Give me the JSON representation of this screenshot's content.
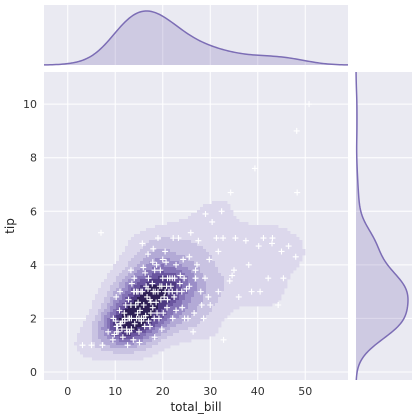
{
  "chart_data": {
    "type": "scatter",
    "subtype": "jointplot",
    "xlabel": "total_bill",
    "ylabel": "tip",
    "xlim": [
      -5,
      59
    ],
    "ylim": [
      -0.3,
      11.2
    ],
    "x_ticks": [
      "0",
      "10",
      "20",
      "30",
      "40",
      "50"
    ],
    "y_ticks": [
      "0",
      "2",
      "4",
      "6",
      "8",
      "10"
    ],
    "grid": true,
    "colors": {
      "accent": "#7c6db5",
      "panel_bg": "#eaeaf2",
      "grid": "#ffffff",
      "marker": "#ffffff",
      "kde_levels": [
        "#dcd8ec",
        "#c9c3e2",
        "#b3aad6",
        "#9b8ec8",
        "#8473b6",
        "#6a559f",
        "#4e3a82",
        "#2e1f55"
      ]
    },
    "points": [
      [
        3.1,
        1.0
      ],
      [
        5.0,
        1.0
      ],
      [
        7.3,
        1.0
      ],
      [
        10.3,
        1.7
      ],
      [
        10.3,
        1.5
      ],
      [
        10.6,
        1.5
      ],
      [
        10.3,
        1.7
      ],
      [
        11.0,
        1.8
      ],
      [
        11.2,
        1.8
      ],
      [
        11.4,
        1.6
      ],
      [
        12.0,
        2.0
      ],
      [
        12.4,
        1.6
      ],
      [
        12.5,
        1.5
      ],
      [
        12.6,
        1.0
      ],
      [
        12.7,
        2.0
      ],
      [
        13.0,
        2.0
      ],
      [
        13.3,
        2.5
      ],
      [
        13.4,
        1.6
      ],
      [
        13.4,
        2.0
      ],
      [
        13.9,
        3.0
      ],
      [
        14.0,
        3.0
      ],
      [
        14.3,
        2.5
      ],
      [
        14.5,
        2.0
      ],
      [
        14.7,
        2.2
      ],
      [
        14.8,
        3.0
      ],
      [
        15.0,
        1.5
      ],
      [
        15.0,
        2.0
      ],
      [
        15.4,
        3.0
      ],
      [
        15.5,
        2.0
      ],
      [
        15.7,
        3.0
      ],
      [
        16.0,
        2.0
      ],
      [
        16.3,
        3.7
      ],
      [
        16.5,
        3.2
      ],
      [
        16.9,
        3.1
      ],
      [
        17.0,
        3.5
      ],
      [
        17.3,
        2.7
      ],
      [
        17.5,
        2.6
      ],
      [
        17.8,
        3.3
      ],
      [
        17.9,
        4.1
      ],
      [
        18.0,
        3.0
      ],
      [
        18.2,
        2.0
      ],
      [
        18.3,
        3.8
      ],
      [
        18.4,
        3.0
      ],
      [
        18.7,
        4.0
      ],
      [
        19.0,
        3.0
      ],
      [
        19.4,
        3.2
      ],
      [
        19.5,
        3.8
      ],
      [
        19.8,
        3.2
      ],
      [
        20.0,
        4.2
      ],
      [
        20.3,
        2.8
      ],
      [
        20.5,
        3.0
      ],
      [
        20.7,
        4.1
      ],
      [
        21.0,
        3.5
      ],
      [
        21.5,
        3.5
      ],
      [
        22.0,
        3.0
      ],
      [
        22.2,
        5.0
      ],
      [
        22.5,
        3.5
      ],
      [
        22.8,
        4.0
      ],
      [
        23.0,
        3.0
      ],
      [
        23.3,
        5.0
      ],
      [
        23.7,
        3.6
      ],
      [
        24.1,
        2.4
      ],
      [
        24.3,
        4.2
      ],
      [
        24.5,
        3.5
      ],
      [
        25.0,
        3.1
      ],
      [
        25.3,
        2.0
      ],
      [
        25.6,
        4.3
      ],
      [
        25.9,
        5.2
      ],
      [
        26.4,
        1.5
      ],
      [
        26.9,
        3.5
      ],
      [
        27.2,
        4.0
      ],
      [
        28.0,
        3.0
      ],
      [
        28.2,
        2.5
      ],
      [
        28.6,
        2.0
      ],
      [
        29.0,
        5.9
      ],
      [
        29.8,
        4.2
      ],
      [
        30.4,
        5.6
      ],
      [
        31.3,
        5.0
      ],
      [
        31.7,
        4.5
      ],
      [
        32.4,
        6.0
      ],
      [
        32.7,
        5.0
      ],
      [
        34.3,
        6.7
      ],
      [
        34.6,
        3.6
      ],
      [
        35.3,
        5.0
      ],
      [
        38.1,
        4.0
      ],
      [
        38.7,
        3.0
      ],
      [
        39.4,
        7.6
      ],
      [
        40.2,
        4.7
      ],
      [
        41.2,
        5.0
      ],
      [
        43.1,
        5.0
      ],
      [
        44.3,
        2.5
      ],
      [
        45.4,
        3.5
      ],
      [
        48.2,
        9.0
      ],
      [
        48.3,
        6.7
      ],
      [
        50.8,
        10.0
      ],
      [
        7.0,
        5.2
      ],
      [
        26.6,
        2.2
      ],
      [
        32.8,
        1.2
      ],
      [
        22.1,
        2.0
      ],
      [
        24.6,
        2.0
      ],
      [
        18.3,
        1.3
      ],
      [
        15.1,
        1.1
      ],
      [
        11.6,
        1.3
      ],
      [
        9.8,
        1.4
      ],
      [
        8.5,
        1.5
      ],
      [
        9.6,
        2.0
      ],
      [
        10.1,
        1.9
      ],
      [
        10.5,
        1.7
      ],
      [
        12.2,
        2.5
      ],
      [
        13.5,
        3.3
      ],
      [
        14.0,
        3.5
      ],
      [
        15.9,
        3.9
      ],
      [
        16.0,
        2.5
      ],
      [
        16.4,
        2.1
      ],
      [
        17.5,
        2.2
      ],
      [
        17.9,
        2.4
      ],
      [
        18.6,
        2.6
      ],
      [
        19.6,
        2.7
      ],
      [
        20.1,
        2.2
      ],
      [
        20.9,
        2.4
      ],
      [
        21.3,
        3.0
      ],
      [
        21.7,
        3.2
      ],
      [
        22.4,
        2.8
      ],
      [
        23.6,
        3.3
      ],
      [
        13.8,
        1.2
      ],
      [
        12.0,
        1.9
      ],
      [
        11.9,
        2.2
      ],
      [
        14.8,
        2.6
      ],
      [
        15.5,
        1.9
      ],
      [
        16.7,
        2.8
      ],
      [
        17.0,
        1.9
      ],
      [
        18.8,
        2.2
      ],
      [
        19.2,
        2.0
      ],
      [
        20.0,
        3.5
      ],
      [
        20.8,
        3.2
      ],
      [
        22.8,
        2.3
      ],
      [
        14.1,
        1.8
      ],
      [
        13.0,
        1.5
      ],
      [
        11.5,
        1.9
      ],
      [
        10.9,
        2.3
      ],
      [
        15.2,
        2.3
      ],
      [
        16.2,
        1.7
      ],
      [
        17.3,
        1.7
      ],
      [
        19.8,
        1.6
      ],
      [
        21.0,
        2.7
      ],
      [
        22.0,
        3.5
      ],
      [
        24.0,
        3.0
      ],
      [
        25.6,
        3.2
      ],
      [
        26.9,
        3.8
      ],
      [
        28.9,
        3.5
      ],
      [
        30.0,
        2.5
      ],
      [
        31.7,
        3.0
      ],
      [
        35.0,
        3.8
      ],
      [
        40.5,
        3.0
      ],
      [
        42.2,
        3.5
      ],
      [
        45.0,
        4.5
      ],
      [
        48.0,
        4.3
      ],
      [
        14.5,
        3.0
      ],
      [
        18.0,
        4.6
      ],
      [
        20.5,
        4.5
      ],
      [
        12.8,
        2.7
      ],
      [
        11.0,
        3.0
      ],
      [
        13.3,
        3.8
      ],
      [
        16.9,
        4.4
      ],
      [
        19.0,
        5.0
      ],
      [
        27.5,
        4.9
      ],
      [
        29.6,
        2.8
      ],
      [
        34.1,
        3.4
      ],
      [
        36.0,
        2.8
      ],
      [
        37.5,
        4.9
      ],
      [
        43.0,
        4.8
      ],
      [
        46.5,
        4.7
      ],
      [
        15.7,
        4.8
      ],
      [
        9.5,
        1.2
      ],
      [
        10.2,
        2.8
      ]
    ]
  }
}
